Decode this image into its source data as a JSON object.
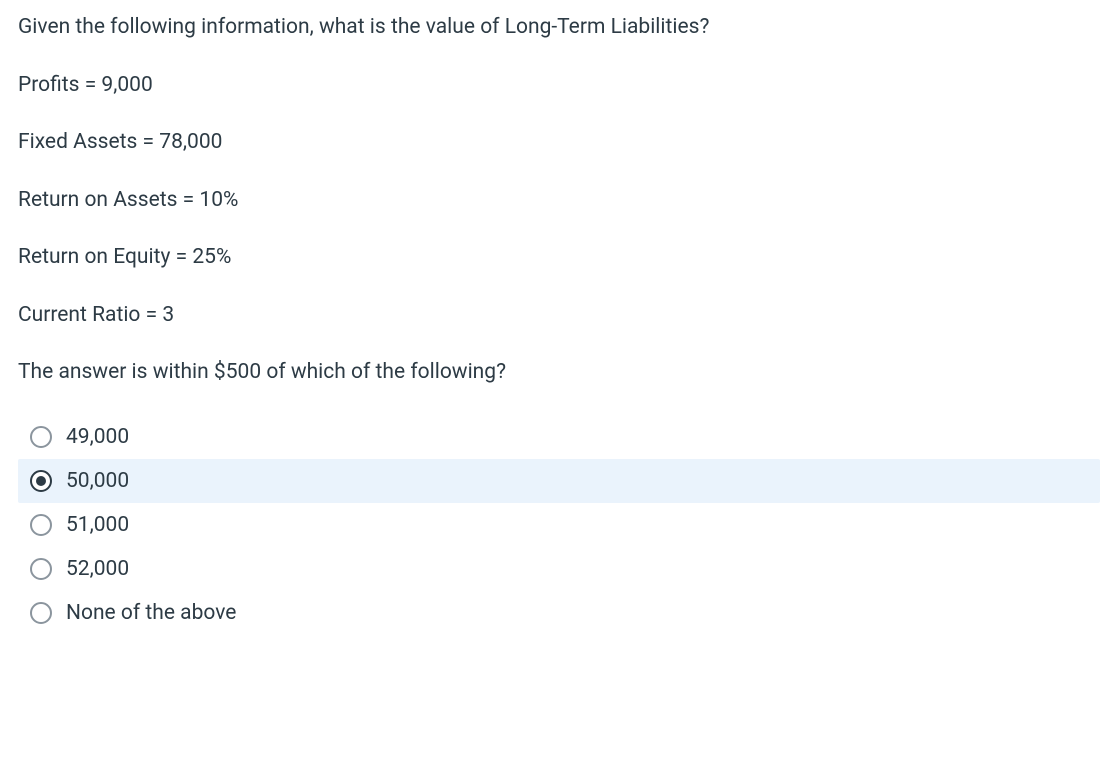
{
  "question": {
    "prompt": "Given the following information, what is the value of Long-Term Liabilities?",
    "data_lines": [
      "Profits = 9,000",
      "Fixed Assets = 78,000",
      "Return on Assets = 10%",
      "Return on Equity = 25%",
      "Current Ratio = 3"
    ],
    "sub_prompt": "The answer is within $500 of which of the following?"
  },
  "options": [
    {
      "label": "49,000",
      "selected": false
    },
    {
      "label": "50,000",
      "selected": true
    },
    {
      "label": "51,000",
      "selected": false
    },
    {
      "label": "52,000",
      "selected": false
    },
    {
      "label": "None of the above",
      "selected": false
    }
  ],
  "colors": {
    "text": "#2d3b45",
    "selected_bg": "#eaf3fc",
    "radio_border": "#8b959e",
    "radio_border_selected": "#2d3b45",
    "radio_fill": "#2d3b45",
    "background": "#ffffff"
  },
  "typography": {
    "font_size": 21,
    "line_height": 1.5,
    "font_family": "system-ui"
  }
}
